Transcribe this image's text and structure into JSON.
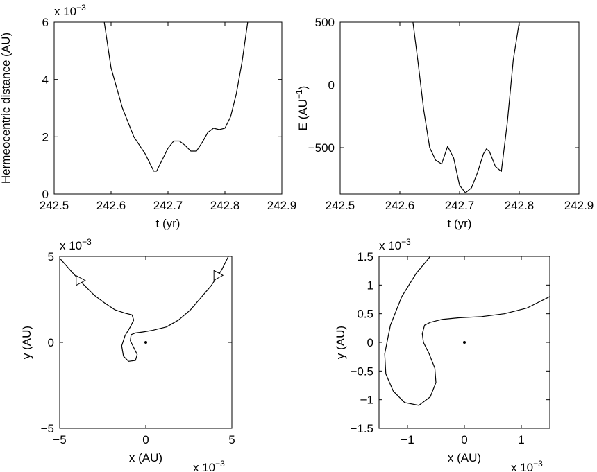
{
  "chart_data": [
    {
      "type": "line",
      "xlabel": "t (yr)",
      "ylabel": "Hermeocentric distance (AU)",
      "xlim": [
        242.5,
        242.9
      ],
      "ylim": [
        0,
        6
      ],
      "xticks": [
        "242.5",
        "242.6",
        "242.7",
        "242.8",
        "242.9"
      ],
      "xtick_values": [
        242.5,
        242.6,
        242.7,
        242.8,
        242.9
      ],
      "yticks": [
        "0",
        "2",
        "4",
        "6"
      ],
      "ytick_values": [
        0,
        2,
        4,
        6
      ],
      "y_multiplier": "x 10",
      "multiplier_exp": "−3",
      "series": [
        {
          "x": [
            242.588,
            242.6,
            242.62,
            242.64,
            242.66,
            242.67,
            242.675,
            242.68,
            242.69,
            242.7,
            242.71,
            242.72,
            242.73,
            242.74,
            242.75,
            242.76,
            242.77,
            242.78,
            242.79,
            242.8,
            242.81,
            242.82,
            242.83,
            242.84
          ],
          "y": [
            6.0,
            4.4,
            3.0,
            2.0,
            1.4,
            1.0,
            0.8,
            0.8,
            1.2,
            1.6,
            1.85,
            1.85,
            1.7,
            1.5,
            1.5,
            1.8,
            2.15,
            2.3,
            2.25,
            2.3,
            2.7,
            3.5,
            4.6,
            6.0
          ]
        }
      ]
    },
    {
      "type": "line",
      "xlabel": "t (yr)",
      "ylabel": "E (AU",
      "ylabel_exp": "−1",
      "ylabel_close": ")",
      "xlim": [
        242.5,
        242.9
      ],
      "ylim": [
        -870,
        500
      ],
      "xticks": [
        "242.5",
        "242.6",
        "242.7",
        "242.8",
        "242.9"
      ],
      "xtick_values": [
        242.5,
        242.6,
        242.7,
        242.8,
        242.9
      ],
      "yticks": [
        "−500",
        "0",
        "500"
      ],
      "ytick_values": [
        -500,
        0,
        500
      ],
      "series": [
        {
          "x": [
            242.622,
            242.63,
            242.64,
            242.65,
            242.66,
            242.67,
            242.675,
            242.68,
            242.69,
            242.7,
            242.71,
            242.72,
            242.73,
            242.74,
            242.745,
            242.75,
            242.76,
            242.77,
            242.78,
            242.79,
            242.8
          ],
          "y": [
            500,
            200,
            -200,
            -500,
            -600,
            -630,
            -560,
            -490,
            -580,
            -800,
            -860,
            -820,
            -700,
            -550,
            -510,
            -530,
            -650,
            -690,
            -300,
            200,
            500
          ]
        }
      ]
    },
    {
      "type": "line",
      "xlabel": "x (AU)",
      "ylabel": "y (AU)",
      "xlim": [
        -5,
        5
      ],
      "ylim": [
        -5,
        5
      ],
      "xticks": [
        "−5",
        "0",
        "5"
      ],
      "xtick_values": [
        -5,
        0,
        5
      ],
      "yticks": [
        "−5",
        "0",
        "5"
      ],
      "ytick_values": [
        -5,
        0,
        5
      ],
      "x_multiplier": "x 10",
      "y_multiplier": "x 10",
      "multiplier_exp": "−3",
      "series": [
        {
          "x": [
            -5.0,
            -4.3,
            -3.6,
            -3.0,
            -2.4,
            -1.8,
            -1.2,
            -0.8,
            -0.7,
            -0.9,
            -1.2,
            -1.4,
            -1.3,
            -1.0,
            -0.6,
            -0.5,
            -0.7,
            -0.9,
            -0.85,
            -0.6,
            -0.2,
            0.4,
            1.2,
            1.9,
            2.6,
            3.2,
            3.8,
            4.4,
            4.8
          ],
          "y": [
            4.9,
            4.1,
            3.35,
            2.75,
            2.3,
            1.9,
            1.7,
            1.6,
            1.3,
            0.9,
            0.4,
            -0.2,
            -0.8,
            -1.1,
            -1.05,
            -0.7,
            -0.3,
            0.1,
            0.45,
            0.55,
            0.6,
            0.7,
            0.9,
            1.3,
            1.9,
            2.6,
            3.3,
            4.2,
            5.0
          ]
        }
      ],
      "origin_marker": [
        0,
        0
      ],
      "arrows": [
        {
          "x": -3.8,
          "y": 3.6,
          "direction": "right"
        },
        {
          "x": 4.2,
          "y": 3.9,
          "direction": "right"
        }
      ]
    },
    {
      "type": "line",
      "xlabel": "x (AU)",
      "ylabel": "y (AU)",
      "xlim": [
        -1.5,
        1.5
      ],
      "ylim": [
        -1.5,
        1.5
      ],
      "xticks": [
        "−1",
        "0",
        "1"
      ],
      "xtick_values": [
        -1,
        0,
        1
      ],
      "yticks": [
        "−1.5",
        "−1",
        "−0.5",
        "0",
        "0.5",
        "1",
        "1.5"
      ],
      "ytick_values": [
        -1.5,
        -1,
        -0.5,
        0,
        0.5,
        1,
        1.5
      ],
      "x_multiplier": "x 10",
      "y_multiplier": "x 10",
      "multiplier_exp": "−3",
      "series": [
        {
          "x": [
            -0.6,
            -0.85,
            -1.1,
            -1.3,
            -1.4,
            -1.38,
            -1.25,
            -1.05,
            -0.8,
            -0.6,
            -0.5,
            -0.52,
            -0.62,
            -0.72,
            -0.74,
            -0.7,
            -0.6,
            -0.4,
            -0.1,
            0.3,
            0.7,
            1.1,
            1.5
          ],
          "y": [
            1.5,
            1.2,
            0.8,
            0.3,
            -0.2,
            -0.55,
            -0.85,
            -1.05,
            -1.1,
            -0.95,
            -0.7,
            -0.45,
            -0.2,
            0.0,
            0.15,
            0.3,
            0.35,
            0.4,
            0.43,
            0.45,
            0.5,
            0.6,
            0.8
          ]
        }
      ],
      "origin_marker": [
        0,
        0
      ]
    }
  ]
}
